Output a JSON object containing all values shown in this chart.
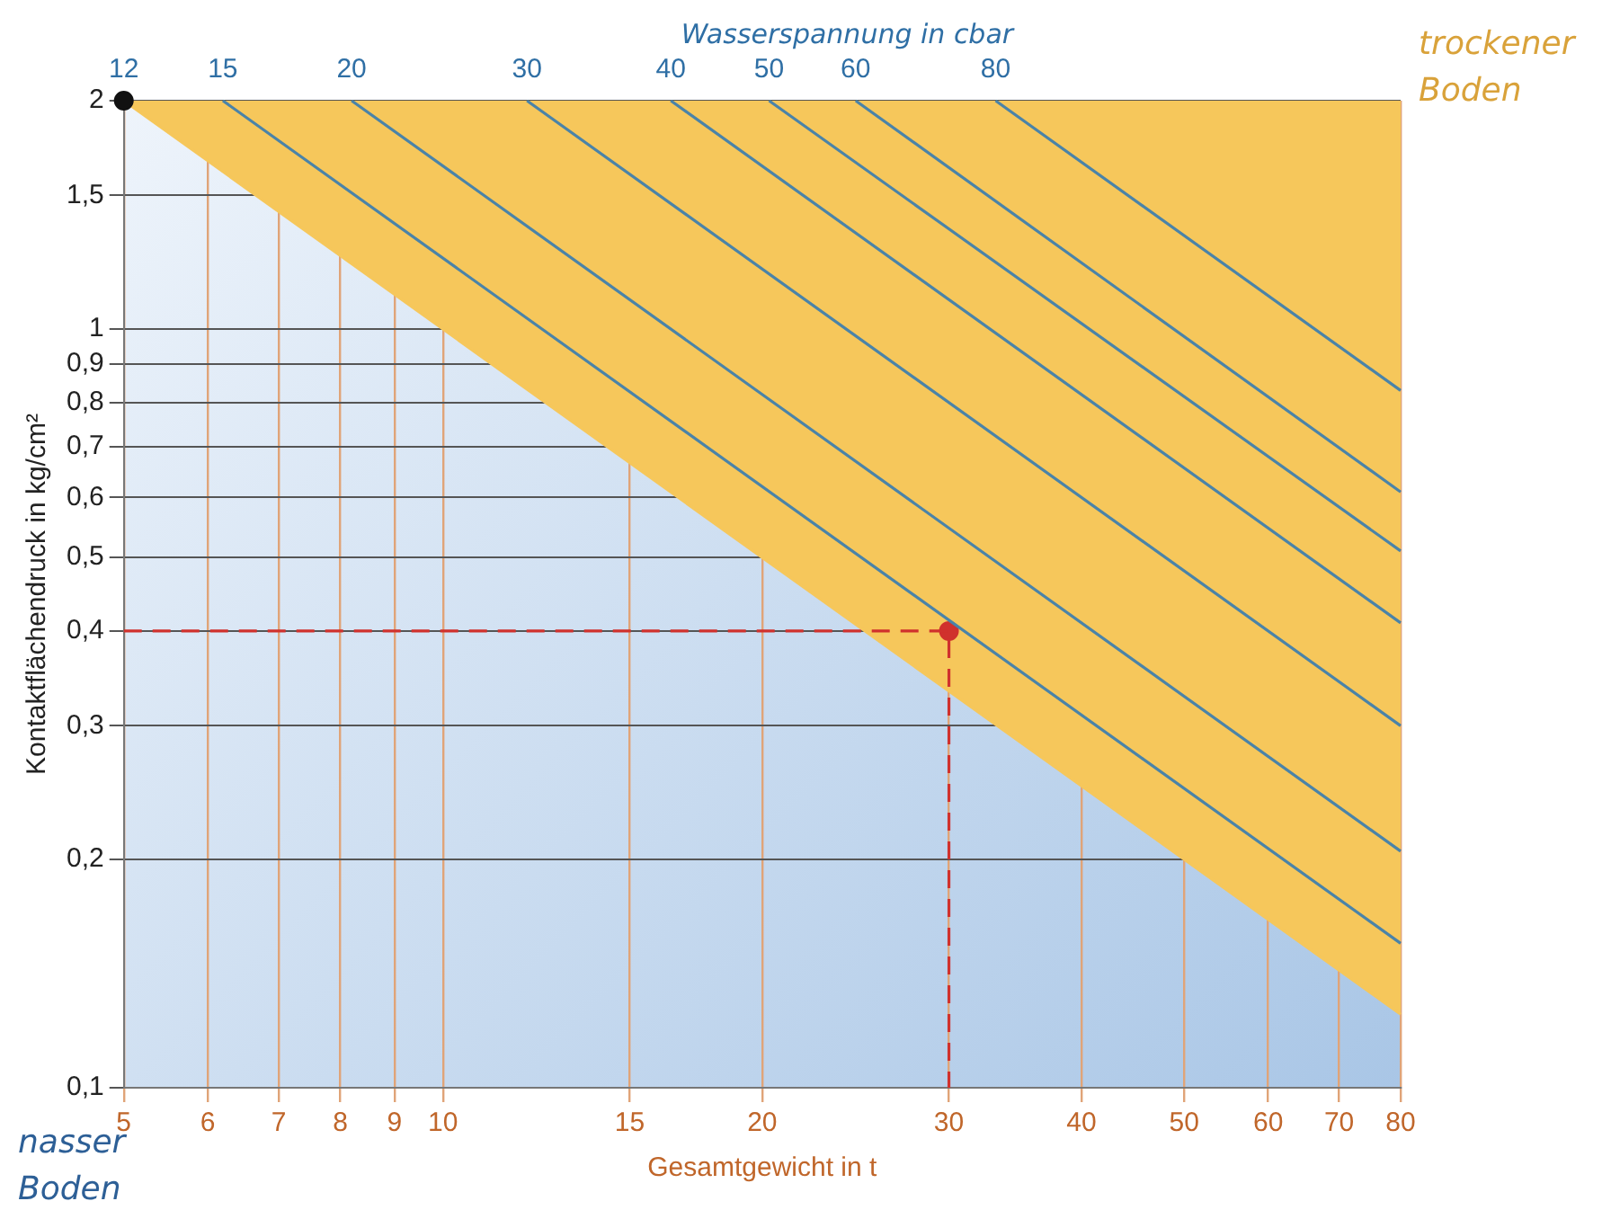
{
  "chart_data": {
    "type": "line",
    "xlabel": "Gesamtgewicht in t",
    "ylabel": "Kontaktflächendruck in kg/cm²",
    "log": "xy",
    "grid": true,
    "legend": false,
    "marker": "none",
    "line_style": "solid",
    "xlim": [
      5,
      80
    ],
    "xticks": [
      5,
      6,
      7,
      8,
      9,
      10,
      15,
      20,
      30,
      40,
      50,
      60,
      70,
      80
    ],
    "ylim": [
      0.1,
      2
    ],
    "yticks": [
      {
        "value": 0.1,
        "label": "0,1"
      },
      {
        "value": 0.2,
        "label": "0,2"
      },
      {
        "value": 0.3,
        "label": "0,3"
      },
      {
        "value": 0.4,
        "label": "0,4"
      },
      {
        "value": 0.5,
        "label": "0,5"
      },
      {
        "value": 0.6,
        "label": "0,6"
      },
      {
        "value": 0.7,
        "label": "0,7"
      },
      {
        "value": 0.8,
        "label": "0,8"
      },
      {
        "value": 0.9,
        "label": "0,9"
      },
      {
        "value": 1,
        "label": "1"
      },
      {
        "value": 1.5,
        "label": "1,5"
      },
      {
        "value": 2,
        "label": "2"
      }
    ],
    "annotations": [
      "trockener Boden",
      "nasser Boden",
      "Wasserspannung in cbar",
      {
        "text": "12",
        "x": 5,
        "y": 2
      },
      {
        "text": "15",
        "x": 6.2,
        "y": 2
      },
      {
        "text": "20",
        "x": 8.2,
        "y": 2
      },
      {
        "text": "30",
        "x": 12,
        "y": 2
      },
      {
        "text": "40",
        "x": 16.4,
        "y": 2
      },
      {
        "text": "50",
        "x": 20.3,
        "y": 2
      },
      {
        "text": "60",
        "x": 24.5,
        "y": 2
      },
      {
        "text": "80",
        "x": 33.2,
        "y": 2
      }
    ],
    "series": [
      {
        "type": "area",
        "color": "#f6c75b",
        "x": [
          5,
          80
        ],
        "values": [
          2,
          0.125
        ]
      },
      {
        "color": "#4a83a8",
        "x": [
          6.2,
          80
        ],
        "values": [
          2,
          0.155
        ]
      },
      {
        "color": "#4a83a8",
        "x": [
          8.2,
          80
        ],
        "values": [
          2,
          0.205
        ]
      },
      {
        "color": "#4a83a8",
        "x": [
          12,
          80
        ],
        "values": [
          2,
          0.3
        ]
      },
      {
        "color": "#4a83a8",
        "x": [
          16.4,
          80
        ],
        "values": [
          2,
          0.41
        ]
      },
      {
        "color": "#4a83a8",
        "x": [
          20.3,
          80
        ],
        "values": [
          2,
          0.51
        ]
      },
      {
        "color": "#4a83a8",
        "x": [
          24.5,
          80
        ],
        "values": [
          2,
          0.61
        ]
      },
      {
        "color": "#4a83a8",
        "x": [
          33.2,
          80
        ],
        "values": [
          2,
          0.83
        ]
      },
      {
        "color": "#d0312d",
        "line_style": "dashed",
        "x": [
          5,
          30,
          30
        ],
        "values": [
          0.4,
          0.4,
          0.1
        ]
      },
      {
        "type": "scatter",
        "color": "#d0312d",
        "marker": "circle",
        "x": [
          30
        ],
        "values": [
          0.4
        ]
      },
      {
        "type": "scatter",
        "color": "#111111",
        "marker": "circle",
        "x": [
          5
        ],
        "values": [
          2
        ]
      }
    ]
  }
}
